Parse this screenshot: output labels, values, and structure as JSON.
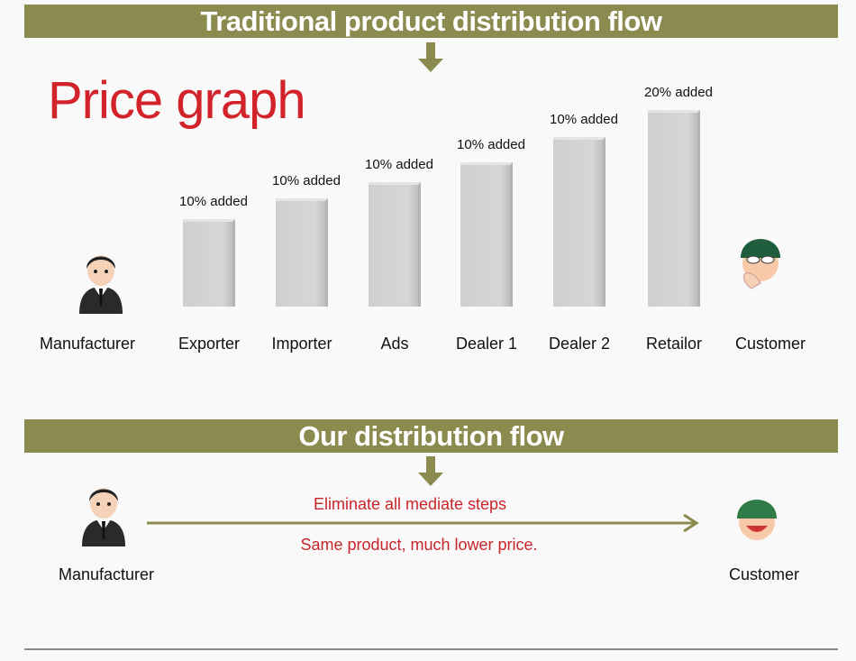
{
  "traditional": {
    "banner": "Traditional product distribution flow",
    "title": "Price graph",
    "start": {
      "label": "Manufacturer",
      "icon": "businessman-icon"
    },
    "end": {
      "label": "Customer",
      "icon": "shocked-customer-icon"
    },
    "steps": [
      {
        "label": "Exporter",
        "added": "10% added"
      },
      {
        "label": "Importer",
        "added": "10% added"
      },
      {
        "label": "Ads",
        "added": "10% added"
      },
      {
        "label": "Dealer 1",
        "added": "10% added"
      },
      {
        "label": "Dealer 2",
        "added": "10% added"
      },
      {
        "label": "Retailor",
        "added": "20% added"
      }
    ]
  },
  "ours": {
    "banner": "Our distribution flow",
    "line1": "Eliminate all mediate steps",
    "line2": "Same product, much lower price.",
    "start": {
      "label": "Manufacturer",
      "icon": "businessman-icon"
    },
    "end": {
      "label": "Customer",
      "icon": "happy-customer-icon"
    }
  },
  "colors": {
    "banner": "#8b8a4f",
    "accent_red": "#d3232a",
    "bar": "#d2d2d4"
  }
}
